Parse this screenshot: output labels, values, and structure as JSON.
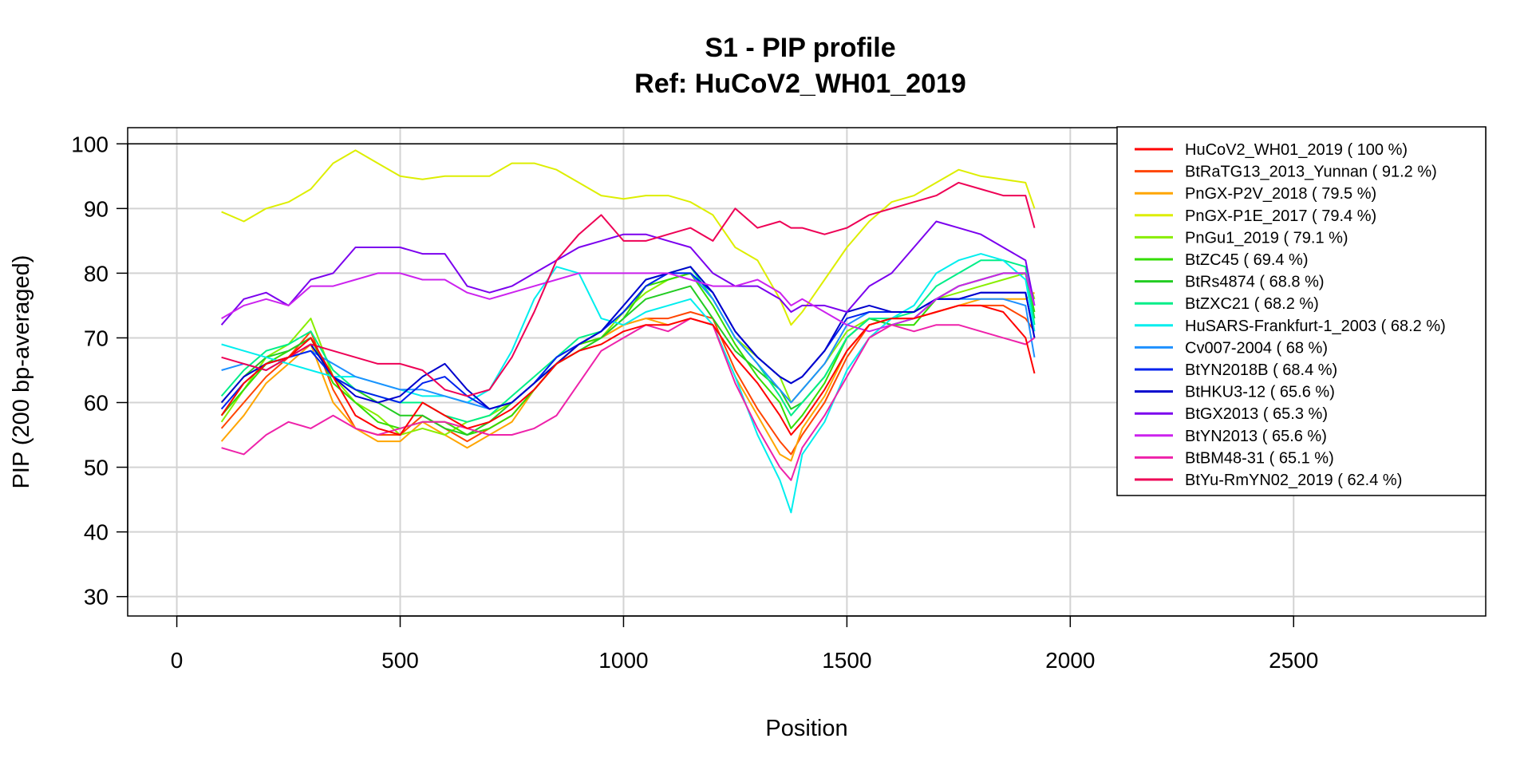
{
  "chart_data": {
    "type": "line",
    "title": "S1 - PIP profile",
    "subtitle": "Ref: HuCoV2_WH01_2019",
    "xlabel": "Position",
    "ylabel": "PIP (200 bp-averaged)",
    "xlim": [
      -110,
      2930
    ],
    "ylim": [
      27,
      102.5
    ],
    "xticks": [
      0,
      500,
      1000,
      1500,
      2000,
      2500
    ],
    "yticks": [
      30,
      40,
      50,
      60,
      70,
      80,
      90,
      100
    ],
    "grid": true,
    "legend_position": "top-right",
    "reference_line": {
      "y": 100,
      "color": "#000000"
    },
    "x": [
      100,
      150,
      200,
      250,
      300,
      350,
      400,
      450,
      500,
      550,
      600,
      650,
      700,
      750,
      800,
      850,
      900,
      950,
      1000,
      1050,
      1100,
      1150,
      1200,
      1250,
      1300,
      1350,
      1375,
      1400,
      1450,
      1500,
      1550,
      1600,
      1650,
      1700,
      1750,
      1800,
      1850,
      1900,
      1920
    ],
    "series": [
      {
        "name": "HuCoV2_WH01_2019 ( 100 %)",
        "color": "#FF0000",
        "values": [
          58,
          63,
          66,
          67,
          70,
          64,
          58,
          56,
          55,
          60,
          58,
          56,
          57,
          59,
          62,
          66,
          68,
          69,
          71,
          72,
          72,
          73,
          72,
          67,
          63,
          58,
          55,
          57,
          62,
          68,
          72,
          73,
          73,
          74,
          75,
          75,
          74,
          70,
          64.5
        ]
      },
      {
        "name": "BtRaTG13_2013_Yunnan ( 91.2 %)",
        "color": "#FF4500",
        "values": [
          56,
          60,
          64,
          67,
          71,
          62,
          56,
          55,
          55,
          58,
          56,
          54,
          56,
          58,
          62,
          66,
          69,
          70,
          72,
          73,
          73,
          74,
          73,
          65,
          59,
          54,
          52,
          55,
          60,
          67,
          72,
          73,
          73,
          74,
          75,
          75,
          75,
          73,
          71
        ]
      },
      {
        "name": "PnGX-P2V_2018 ( 79.5 %)",
        "color": "#FFA500",
        "values": [
          54,
          58,
          63,
          66,
          69,
          60,
          56,
          54,
          54,
          57,
          55,
          53,
          55,
          57,
          62,
          66,
          69,
          70,
          72,
          73,
          72,
          73,
          72,
          64,
          58,
          52,
          51,
          56,
          61,
          68,
          72,
          73,
          73,
          74,
          75,
          76,
          76,
          76,
          77
        ]
      },
      {
        "name": "PnGX-P1E_2017 ( 79.4 %)",
        "color": "#DDEE00",
        "values": [
          89.5,
          88,
          90,
          91,
          93,
          97,
          99,
          97,
          95,
          94.5,
          95,
          95,
          95,
          97,
          97,
          96,
          94,
          92,
          91.5,
          92,
          92,
          91,
          89,
          84,
          82,
          76,
          72,
          74,
          79,
          84,
          88,
          91,
          92,
          94,
          96,
          95,
          94.5,
          94,
          90
        ]
      },
      {
        "name": "PnGu1_2019 ( 79.1 %)",
        "color": "#88EE00",
        "values": [
          57,
          62,
          67,
          69,
          73,
          64,
          60,
          58,
          55,
          56,
          55,
          57,
          58,
          60,
          63,
          66,
          68,
          70,
          74,
          77,
          79,
          80,
          76,
          70,
          67,
          64,
          60,
          62,
          66,
          71,
          73,
          72,
          73,
          76,
          77,
          78,
          79,
          80,
          76
        ]
      },
      {
        "name": "BtZC45 ( 69.4 %)",
        "color": "#33DD00",
        "values": [
          58,
          62,
          66,
          68,
          70,
          63,
          60,
          57,
          56,
          57,
          57,
          55,
          56,
          58,
          62,
          66,
          69,
          70,
          73,
          78,
          79,
          80,
          75,
          69,
          64,
          60,
          56,
          58,
          63,
          70,
          73,
          72,
          72,
          76,
          78,
          79,
          80,
          80,
          74
        ]
      },
      {
        "name": "BtRs4874 ( 68.8 %)",
        "color": "#22CC22",
        "values": [
          60,
          64,
          67,
          68,
          70,
          64,
          62,
          60,
          58,
          58,
          56,
          55,
          57,
          60,
          63,
          66,
          68,
          70,
          73,
          76,
          77,
          78,
          73,
          68,
          65,
          62,
          59,
          60,
          64,
          70,
          73,
          72,
          73,
          76,
          78,
          79,
          80,
          80,
          73
        ]
      },
      {
        "name": "BtZXC21 ( 68.2 %)",
        "color": "#00EE88",
        "values": [
          61,
          65,
          68,
          69,
          71,
          65,
          62,
          61,
          60,
          60,
          58,
          57,
          58,
          61,
          64,
          67,
          70,
          71,
          74,
          78,
          80,
          81,
          76,
          70,
          66,
          61,
          58,
          60,
          64,
          70,
          73,
          73,
          74,
          78,
          80,
          82,
          82,
          81,
          72
        ]
      },
      {
        "name": "HuSARS-Frankfurt-1_2003 ( 68.2 %)",
        "color": "#00EEEE",
        "values": [
          69,
          68,
          67,
          66,
          65,
          64,
          64,
          63,
          62,
          61,
          61,
          60,
          62,
          68,
          76,
          81,
          80,
          73,
          72,
          74,
          75,
          76,
          72,
          64,
          55,
          48,
          43,
          52,
          57,
          65,
          70,
          73,
          75,
          80,
          82,
          83,
          82,
          79,
          71
        ]
      },
      {
        "name": "Cv007-2004 ( 68 %)",
        "color": "#1E90FF",
        "values": [
          65,
          66,
          65,
          67,
          68,
          66,
          64,
          63,
          62,
          62,
          61,
          60,
          59,
          60,
          63,
          67,
          69,
          71,
          75,
          79,
          80,
          80,
          76,
          70,
          66,
          62,
          60,
          62,
          66,
          72,
          74,
          74,
          74,
          76,
          76,
          76,
          76,
          75,
          67
        ]
      },
      {
        "name": "BtYN2018B ( 68.4 %)",
        "color": "#0022EE",
        "values": [
          59,
          63,
          66,
          67,
          68,
          64,
          62,
          61,
          60,
          63,
          64,
          61,
          59,
          60,
          63,
          67,
          69,
          71,
          74,
          78,
          80,
          80,
          77,
          71,
          67,
          64,
          63,
          64,
          68,
          73,
          74,
          74,
          74,
          76,
          76,
          77,
          77,
          77,
          70
        ]
      },
      {
        "name": "BtHKU3-12 ( 65.6 %)",
        "color": "#0000CD",
        "values": [
          60,
          64,
          66,
          67,
          69,
          64,
          61,
          60,
          61,
          64,
          66,
          62,
          59,
          60,
          63,
          66,
          69,
          71,
          75,
          79,
          80,
          81,
          77,
          71,
          67,
          64,
          63,
          64,
          68,
          74,
          75,
          74,
          74,
          76,
          76,
          77,
          77,
          77,
          70
        ]
      },
      {
        "name": "BtGX2013 ( 65.3 %)",
        "color": "#7B00EE",
        "values": [
          72,
          76,
          77,
          75,
          79,
          80,
          84,
          84,
          84,
          83,
          83,
          78,
          77,
          78,
          80,
          82,
          84,
          85,
          86,
          86,
          85,
          84,
          80,
          78,
          78,
          76,
          74,
          75,
          75,
          74,
          78,
          80,
          84,
          88,
          87,
          86,
          84,
          82,
          75
        ]
      },
      {
        "name": "BtYN2013 ( 65.6 %)",
        "color": "#CC22EE",
        "values": [
          73,
          75,
          76,
          75,
          78,
          78,
          79,
          80,
          80,
          79,
          79,
          77,
          76,
          77,
          78,
          79,
          80,
          80,
          80,
          80,
          80,
          79,
          78,
          78,
          79,
          77,
          75,
          76,
          74,
          72,
          71,
          72,
          73,
          76,
          78,
          79,
          80,
          80,
          75
        ]
      },
      {
        "name": "BtBM48-31 ( 65.1 %)",
        "color": "#EE22AA",
        "values": [
          53,
          52,
          55,
          57,
          56,
          58,
          56,
          55,
          56,
          57,
          57,
          56,
          55,
          55,
          56,
          58,
          63,
          68,
          70,
          72,
          71,
          73,
          72,
          63,
          56,
          50,
          48,
          53,
          58,
          64,
          70,
          72,
          71,
          72,
          72,
          71,
          70,
          69,
          70
        ]
      },
      {
        "name": "BtYu-RmYN02_2019 ( 62.4 %)",
        "color": "#EE0055",
        "values": [
          67,
          66,
          65,
          67,
          69,
          68,
          67,
          66,
          66,
          65,
          62,
          61,
          62,
          67,
          74,
          82,
          86,
          89,
          85,
          85,
          86,
          87,
          85,
          90,
          87,
          88,
          87,
          87,
          86,
          87,
          89,
          90,
          91,
          92,
          94,
          93,
          92,
          92,
          87
        ]
      }
    ]
  }
}
